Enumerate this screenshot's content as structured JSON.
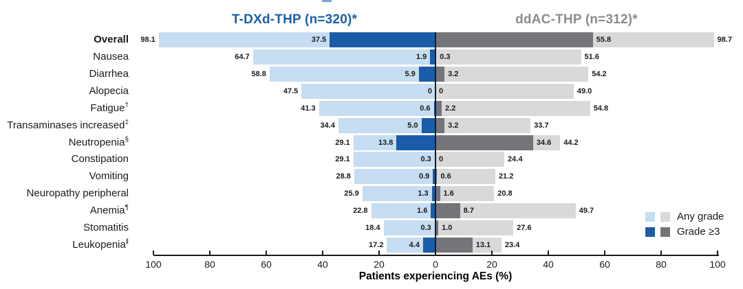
{
  "figure": {
    "left_group_title": "T-DXd-THP (n=320)*",
    "right_group_title": "ddAC-THP (n=312)*",
    "axis_label": "Patients experiencing AEs (%)",
    "legend": {
      "any_grade_label": "Any grade",
      "grade3_label": "Grade ≥3"
    }
  },
  "colors": {
    "tdxd_any": "#c6ddf2",
    "tdxd_g3": "#1b5ca9",
    "ddac_any": "#d9d9d9",
    "ddac_g3": "#757579",
    "left_title_text": "#1c5faa",
    "right_title_text": "#8b8c8f",
    "axis": "#1a1a1a",
    "artifact": "#7aa6d6"
  },
  "chart_data": {
    "type": "bar",
    "variant": "diverging-butterfly",
    "unit": "percent",
    "title_left": "T-DXd-THP (n=320)*",
    "title_right": "ddAC-THP (n=312)*",
    "xlabel": "Patients experiencing AEs (%)",
    "x_ticks": [
      "100",
      "80",
      "60",
      "40",
      "20",
      "0",
      "20",
      "40",
      "60",
      "80",
      "100"
    ],
    "xlim_per_side": [
      0,
      100
    ],
    "grid": false,
    "legend_position": "lower-right",
    "legend": [
      "Any grade",
      "Grade ≥3"
    ],
    "groups": [
      "T-DXd-THP (n=320)*",
      "ddAC-THP (n=312)*"
    ],
    "rows": [
      {
        "name": "Overall",
        "sup": "",
        "bold": true,
        "tdxd_any": 98.1,
        "tdxd_any_label": "98.1",
        "tdxd_g3": 37.5,
        "tdxd_g3_label": "37.5",
        "ddac_g3": 55.8,
        "ddac_g3_label": "55.8",
        "ddac_any": 98.7,
        "ddac_any_label": "98.7"
      },
      {
        "name": "Nausea",
        "sup": "",
        "bold": false,
        "tdxd_any": 64.7,
        "tdxd_any_label": "64.7",
        "tdxd_g3": 1.9,
        "tdxd_g3_label": "1.9",
        "ddac_g3": 0.3,
        "ddac_g3_label": "0.3",
        "ddac_any": 51.6,
        "ddac_any_label": "51.6"
      },
      {
        "name": "Diarrhea",
        "sup": "",
        "bold": false,
        "tdxd_any": 58.8,
        "tdxd_any_label": "58.8",
        "tdxd_g3": 5.9,
        "tdxd_g3_label": "5.9",
        "ddac_g3": 3.2,
        "ddac_g3_label": "3.2",
        "ddac_any": 54.2,
        "ddac_any_label": "54.2"
      },
      {
        "name": "Alopecia",
        "sup": "",
        "bold": false,
        "tdxd_any": 47.5,
        "tdxd_any_label": "47.5",
        "tdxd_g3": 0,
        "tdxd_g3_label": "0",
        "ddac_g3": 0,
        "ddac_g3_label": "0",
        "ddac_any": 49.0,
        "ddac_any_label": "49.0"
      },
      {
        "name": "Fatigue",
        "sup": "†",
        "bold": false,
        "tdxd_any": 41.3,
        "tdxd_any_label": "41.3",
        "tdxd_g3": 0.6,
        "tdxd_g3_label": "0.6",
        "ddac_g3": 2.2,
        "ddac_g3_label": "2.2",
        "ddac_any": 54.8,
        "ddac_any_label": "54.8"
      },
      {
        "name": "Transaminases increased",
        "sup": "‡",
        "bold": false,
        "tdxd_any": 34.4,
        "tdxd_any_label": "34.4",
        "tdxd_g3": 5.0,
        "tdxd_g3_label": "5.0",
        "ddac_g3": 3.2,
        "ddac_g3_label": "3.2",
        "ddac_any": 33.7,
        "ddac_any_label": "33.7"
      },
      {
        "name": "Neutropenia",
        "sup": "§",
        "bold": false,
        "tdxd_any": 29.1,
        "tdxd_any_label": "29.1",
        "tdxd_g3": 13.8,
        "tdxd_g3_label": "13.8",
        "ddac_g3": 34.6,
        "ddac_g3_label": "34.6",
        "ddac_any": 44.2,
        "ddac_any_label": "44.2"
      },
      {
        "name": "Constipation",
        "sup": "",
        "bold": false,
        "tdxd_any": 29.1,
        "tdxd_any_label": "29.1",
        "tdxd_g3": 0.3,
        "tdxd_g3_label": "0.3",
        "ddac_g3": 0,
        "ddac_g3_label": "0",
        "ddac_any": 24.4,
        "ddac_any_label": "24.4"
      },
      {
        "name": "Vomiting",
        "sup": "",
        "bold": false,
        "tdxd_any": 28.8,
        "tdxd_any_label": "28.8",
        "tdxd_g3": 0.9,
        "tdxd_g3_label": "0.9",
        "ddac_g3": 0.6,
        "ddac_g3_label": "0.6",
        "ddac_any": 21.2,
        "ddac_any_label": "21.2"
      },
      {
        "name": "Neuropathy peripheral",
        "sup": "",
        "bold": false,
        "tdxd_any": 25.9,
        "tdxd_any_label": "25.9",
        "tdxd_g3": 1.3,
        "tdxd_g3_label": "1.3",
        "ddac_g3": 1.6,
        "ddac_g3_label": "1.6",
        "ddac_any": 20.8,
        "ddac_any_label": "20.8"
      },
      {
        "name": "Anemia",
        "sup": "¶",
        "bold": false,
        "tdxd_any": 22.8,
        "tdxd_any_label": "22.8",
        "tdxd_g3": 1.6,
        "tdxd_g3_label": "1.6",
        "ddac_g3": 8.7,
        "ddac_g3_label": "8.7",
        "ddac_any": 49.7,
        "ddac_any_label": "49.7"
      },
      {
        "name": "Stomatitis",
        "sup": "",
        "bold": false,
        "tdxd_any": 18.4,
        "tdxd_any_label": "18.4",
        "tdxd_g3": 0.3,
        "tdxd_g3_label": "0.3",
        "ddac_g3": 1.0,
        "ddac_g3_label": "1.0",
        "ddac_any": 27.6,
        "ddac_any_label": "27.6"
      },
      {
        "name": "Leukopenia",
        "sup": "‖",
        "bold": false,
        "tdxd_any": 17.2,
        "tdxd_any_label": "17.2",
        "tdxd_g3": 4.4,
        "tdxd_g3_label": "4.4",
        "ddac_g3": 13.1,
        "ddac_g3_label": "13.1",
        "ddac_any": 23.4,
        "ddac_any_label": "23.4"
      }
    ]
  }
}
